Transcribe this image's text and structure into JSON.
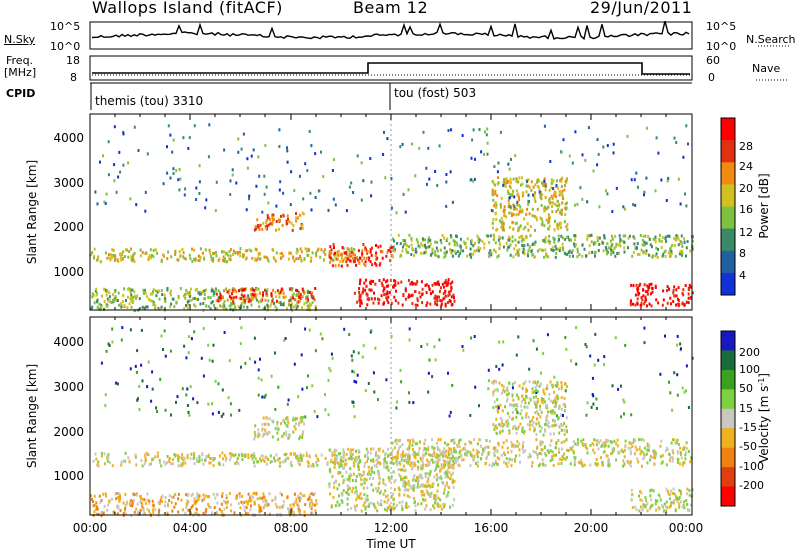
{
  "header": {
    "station": "Wallops Island (fitACF)",
    "beam": "Beam 12",
    "date": "29/Jun/2011"
  },
  "labels": {
    "nsky": "N.Sky",
    "nsearch": "N.Search",
    "freq": "Freq.",
    "freq_unit": "[MHz]",
    "nave": "Nave",
    "cpid": "CPID"
  },
  "noise_panel": {
    "left_ticks": [
      "10^5",
      "10^0"
    ],
    "right_ticks": [
      "10^5",
      "10^0"
    ]
  },
  "freq_panel": {
    "left_ticks": [
      "18",
      "8"
    ],
    "right_ticks": [
      "60",
      "0"
    ]
  },
  "cpid": {
    "mode1": "themis (tou) 3310",
    "mode2": "tou (fost) 503"
  },
  "colors": {
    "power_scale": [
      "#1030d8",
      "#2060a0",
      "#3a8a6a",
      "#7ec040",
      "#d0c020",
      "#f08a10",
      "#e03010",
      "#ff0000"
    ],
    "velocity_scale": [
      "#1818c0",
      "#1a6a3a",
      "#3aa020",
      "#7ed040",
      "#c8c8c0",
      "#f0b020",
      "#f08010",
      "#e04010",
      "#ff0000"
    ]
  },
  "chart_data": [
    {
      "type": "heatmap",
      "panel": "power",
      "ylabel": "Slant Range [km]",
      "y_ticks": [
        "1000",
        "2000",
        "3000",
        "4000"
      ],
      "x_ticks": [
        "00:00",
        "04:00",
        "08:00",
        "12:00",
        "16:00",
        "20:00",
        "00:00"
      ],
      "xlabel": "",
      "colorbar_label": "Power [dB]",
      "colorbar_ticks": [
        "28",
        "24",
        "20",
        "16",
        "12",
        "8",
        "4"
      ],
      "ylim": [
        180,
        4600
      ],
      "xlim_hours": [
        0,
        24
      ],
      "echo_bands": [
        {
          "t0": 0.0,
          "t1": 9.0,
          "r0": 200,
          "r1": 700,
          "level": 3
        },
        {
          "t0": 5.0,
          "t1": 9.0,
          "r0": 400,
          "r1": 700,
          "level": 6
        },
        {
          "t0": 0.0,
          "t1": 10.5,
          "r0": 1300,
          "r1": 1600,
          "level": 4
        },
        {
          "t0": 6.5,
          "t1": 8.5,
          "r0": 2000,
          "r1": 2400,
          "level": 5
        },
        {
          "t0": 9.5,
          "t1": 12.0,
          "r0": 1200,
          "r1": 1700,
          "level": 6
        },
        {
          "t0": 10.5,
          "t1": 14.5,
          "r0": 300,
          "r1": 900,
          "level": 7
        },
        {
          "t0": 12.0,
          "t1": 24.0,
          "r0": 1400,
          "r1": 1900,
          "level": 3
        },
        {
          "t0": 16.0,
          "t1": 19.0,
          "r0": 2000,
          "r1": 3200,
          "level": 4
        },
        {
          "t0": 21.5,
          "t1": 24.0,
          "r0": 300,
          "r1": 800,
          "level": 7
        }
      ]
    },
    {
      "type": "heatmap",
      "panel": "velocity",
      "ylabel": "Slant Range [km]",
      "y_ticks": [
        "1000",
        "2000",
        "3000",
        "4000"
      ],
      "x_ticks": [
        "00:00",
        "04:00",
        "08:00",
        "12:00",
        "16:00",
        "20:00",
        "00:00"
      ],
      "xlabel": "Time UT",
      "colorbar_label": "Velocity [m s^-1]",
      "colorbar_ticks": [
        "200",
        "100",
        "50",
        "15",
        "-15",
        "-50",
        "-100",
        "-200"
      ],
      "ylim": [
        180,
        4600
      ],
      "xlim_hours": [
        0,
        24
      ],
      "echo_bands": [
        {
          "t0": 0.0,
          "t1": 10.5,
          "r0": 1300,
          "r1": 1600,
          "level": 4
        },
        {
          "t0": 0.0,
          "t1": 9.0,
          "r0": 200,
          "r1": 700,
          "level": 5
        },
        {
          "t0": 6.5,
          "t1": 8.5,
          "r0": 1900,
          "r1": 2400,
          "level": 4
        },
        {
          "t0": 9.5,
          "t1": 14.5,
          "r0": 300,
          "r1": 1700,
          "level": 4
        },
        {
          "t0": 12.0,
          "t1": 24.0,
          "r0": 1300,
          "r1": 1900,
          "level": 4
        },
        {
          "t0": 16.0,
          "t1": 19.0,
          "r0": 2000,
          "r1": 3200,
          "level": 4
        },
        {
          "t0": 21.5,
          "t1": 24.0,
          "r0": 300,
          "r1": 800,
          "level": 4
        }
      ]
    }
  ]
}
